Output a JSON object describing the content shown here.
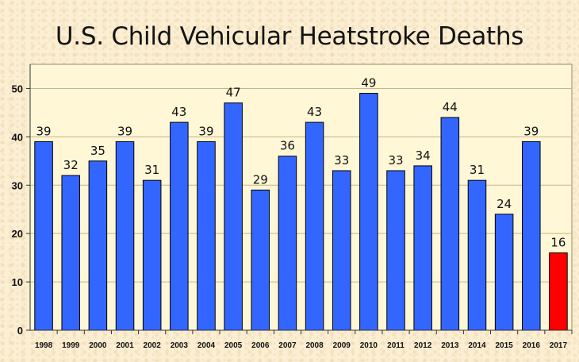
{
  "chart_data": {
    "type": "bar",
    "title": "U.S. Child Vehicular Heatstroke Deaths",
    "xlabel": "",
    "ylabel": "",
    "ylim": [
      0,
      55
    ],
    "yticks": [
      0,
      10,
      20,
      30,
      40,
      50
    ],
    "grid": true,
    "categories": [
      "1998",
      "1999",
      "2000",
      "2001",
      "2002",
      "2003",
      "2004",
      "2005",
      "2006",
      "2007",
      "2008",
      "2009",
      "2010",
      "2011",
      "2012",
      "2013",
      "2014",
      "2015",
      "2016",
      "2017"
    ],
    "values": [
      39,
      32,
      35,
      39,
      31,
      43,
      39,
      47,
      29,
      36,
      43,
      33,
      49,
      33,
      34,
      44,
      31,
      24,
      39,
      16
    ],
    "colors": {
      "default_bar": "#3366ff",
      "highlight_bar": "#ff0000",
      "highlight_category": "2017",
      "plot_background": "#fff7d6",
      "gridline": "#c9b58a"
    }
  }
}
